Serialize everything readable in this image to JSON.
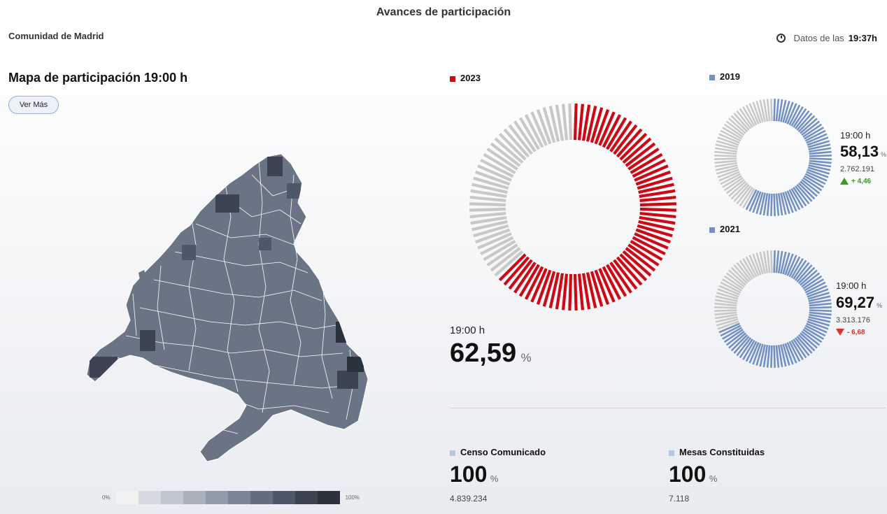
{
  "header": {
    "title": "Avances de participación",
    "region": "Comunidad de Madrid",
    "updated_prefix": "Datos de las",
    "updated_time": "19:37h"
  },
  "map": {
    "title": "Mapa de participación 19:00 h",
    "button_label": "Ver Más",
    "legend_min": "0%",
    "legend_max": "100%",
    "legend_colors": [
      "#f1f2f4",
      "#d7dbe1",
      "#c0c6cf",
      "#a9b1bd",
      "#929ba9",
      "#7b8596",
      "#646e7f",
      "#4f5868",
      "#3c4452",
      "#2c323d"
    ]
  },
  "colors": {
    "accent_2023": "#cc0a16",
    "accent_past": "#7390c2",
    "empty_bar": "#c8c8c8",
    "legend_light": "#b9c8e0"
  },
  "y2023": {
    "year": "2023",
    "time": "19:00 h",
    "value": "62,59",
    "unit": "%",
    "share": 0.6259
  },
  "y2019": {
    "year": "2019",
    "time": "19:00 h",
    "value": "58,13",
    "unit": "%",
    "votes": "2.762.191",
    "delta": "+ 4,46",
    "share": 0.5813
  },
  "y2021": {
    "year": "2021",
    "time": "19:00 h",
    "value": "69,27",
    "unit": "%",
    "votes": "3.313.176",
    "delta": "- 6,68",
    "share": 0.6927
  },
  "censo": {
    "label": "Censo Comunicado",
    "value": "100",
    "unit": "%",
    "count": "4.839.234"
  },
  "mesas": {
    "label": "Mesas Constituidas",
    "value": "100",
    "unit": "%",
    "count": "7.118"
  }
}
